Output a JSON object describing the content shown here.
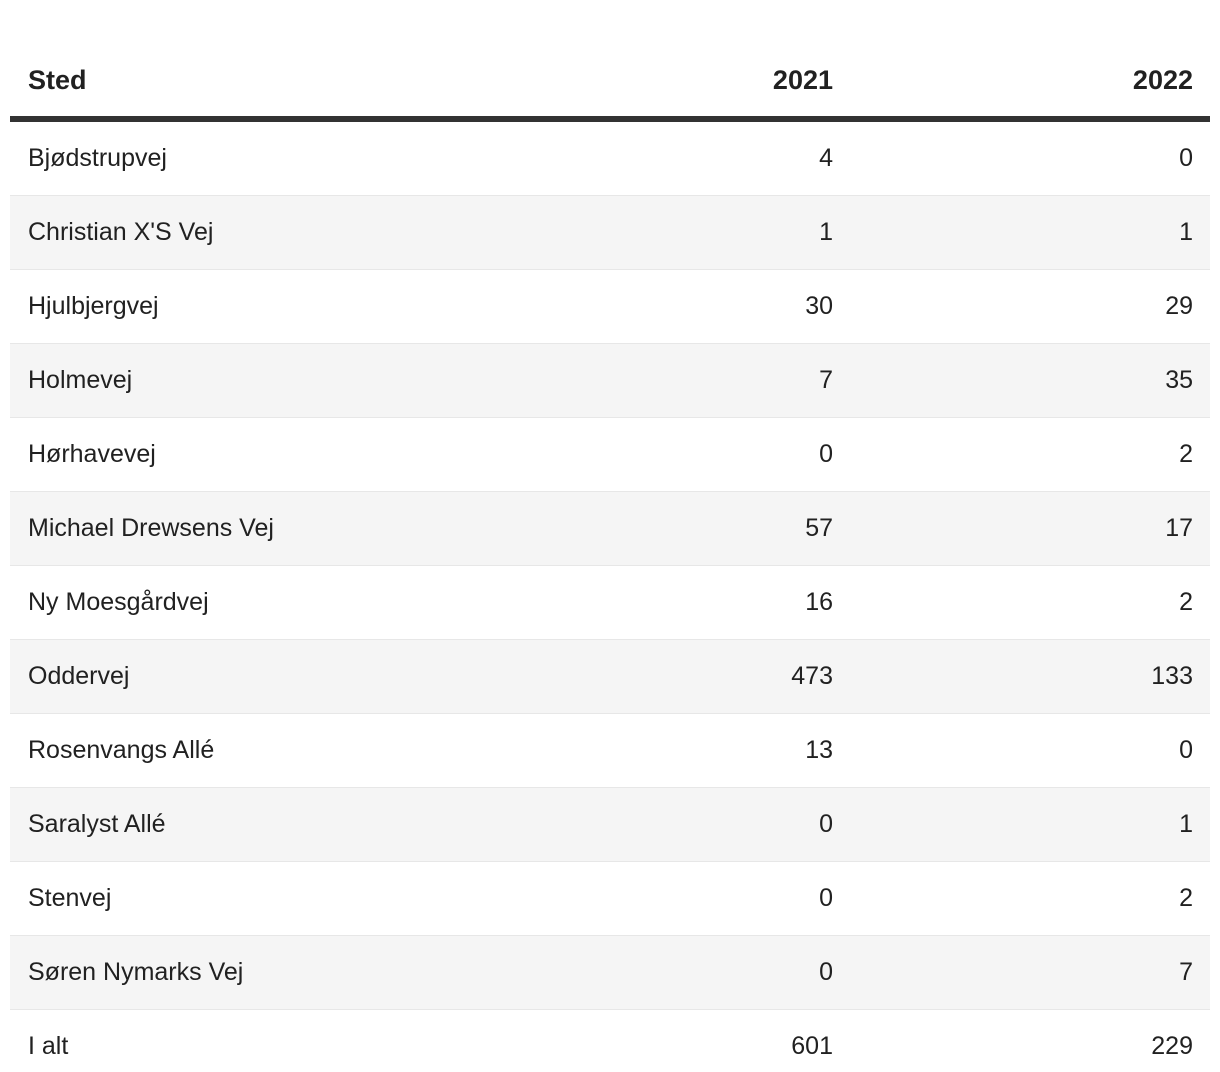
{
  "chart_data": {
    "type": "table",
    "columns": [
      "Sted",
      "2021",
      "2022"
    ],
    "rows": [
      [
        "Bjødstrupvej",
        4,
        0
      ],
      [
        "Christian X'S Vej",
        1,
        1
      ],
      [
        "Hjulbjergvej",
        30,
        29
      ],
      [
        "Holmevej",
        7,
        35
      ],
      [
        "Hørhavevej",
        0,
        2
      ],
      [
        "Michael Drewsens Vej",
        57,
        17
      ],
      [
        "Ny Moesgårdvej",
        16,
        2
      ],
      [
        "Oddervej",
        473,
        133
      ],
      [
        "Rosenvangs Allé",
        13,
        0
      ],
      [
        "Saralyst Allé",
        0,
        1
      ],
      [
        "Stenvej",
        0,
        2
      ],
      [
        "Søren Nymarks Vej",
        0,
        7
      ],
      [
        "I alt",
        601,
        229
      ]
    ],
    "total_row_label": "I alt",
    "legend_position": "none",
    "grid": "zebra-stripes"
  },
  "colors": {
    "row_stripe": "#f5f5f5",
    "row_divider": "#e7e7e7",
    "header_rule": "#323232",
    "text": "#212121",
    "background": "#ffffff"
  }
}
